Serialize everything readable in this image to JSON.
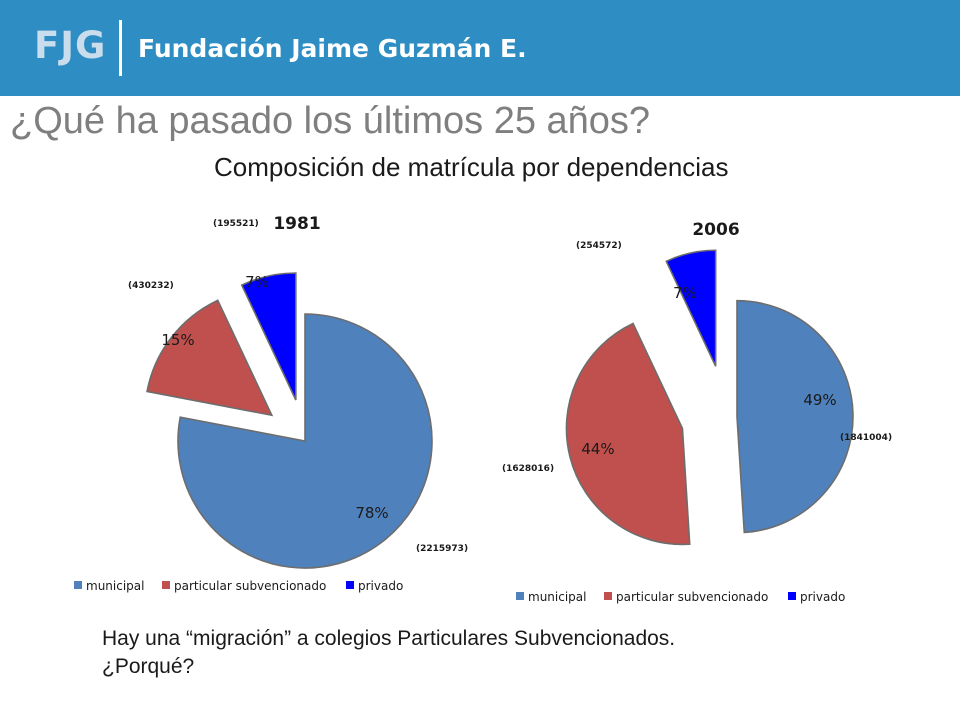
{
  "header": {
    "logo": "FJG",
    "organization": "Fundación Jaime Guzmán E."
  },
  "slide": {
    "title": "¿Qué ha pasado los últimos 25 años?",
    "subtitle": "Composición de matrícula por dependencias",
    "note_line1": "Hay una “migración” a colegios Particulares Subvencionados.",
    "note_line2": "¿Porqué?"
  },
  "chart_data": [
    {
      "type": "pie",
      "title": "1981",
      "categories": [
        "municipal",
        "particular subvencionado",
        "privado"
      ],
      "values": [
        78,
        15,
        7
      ],
      "value_labels": [
        "78%",
        "15%",
        "7%"
      ],
      "counts": [
        "(2215973)",
        "(430232)",
        "(195521)"
      ],
      "colors": [
        "#4f81bd",
        "#c0504d",
        "#0000ff"
      ],
      "legend": "bottom"
    },
    {
      "type": "pie",
      "title": "2006",
      "categories": [
        "municipal",
        "particular subvencionado",
        "privado"
      ],
      "values": [
        49,
        44,
        7
      ],
      "value_labels": [
        "49%",
        "44%",
        "7%"
      ],
      "counts": [
        "(1841004)",
        "(1628016)",
        "(254572)"
      ],
      "colors": [
        "#4f81bd",
        "#c0504d",
        "#0000ff"
      ],
      "legend": "bottom"
    }
  ]
}
